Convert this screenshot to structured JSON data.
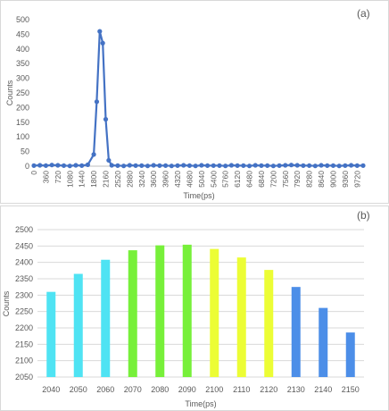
{
  "chart_data": [
    {
      "type": "line",
      "panel_label": "(a)",
      "xlabel": "Time(ps)",
      "ylabel": "Counts",
      "ylim": [
        0,
        500
      ],
      "yticks": [
        0,
        50,
        100,
        150,
        200,
        250,
        300,
        350,
        400,
        450,
        500
      ],
      "xlim": [
        0,
        9900
      ],
      "xticks": [
        "0",
        "360",
        "720",
        "1080",
        "1440",
        "1800",
        "2160",
        "2520",
        "2880",
        "3240",
        "3600",
        "3960",
        "4320",
        "4680",
        "5040",
        "5400",
        "5760",
        "6120",
        "6480",
        "6840",
        "7200",
        "7560",
        "7920",
        "8280",
        "8640",
        "9000",
        "9360",
        "9720"
      ],
      "grid": false,
      "color": "#4472c4",
      "series": [
        {
          "x": [
            0,
            180,
            360,
            540,
            720,
            900,
            1080,
            1260,
            1440,
            1620,
            1800,
            1890,
            1980,
            2070,
            2160,
            2250,
            2340,
            2520,
            2700,
            2880,
            3060,
            3240,
            3420,
            3600,
            3780,
            3960,
            4140,
            4320,
            4500,
            4680,
            4860,
            5040,
            5220,
            5400,
            5580,
            5760,
            5940,
            6120,
            6300,
            6480,
            6660,
            6840,
            7020,
            7200,
            7380,
            7560,
            7740,
            7920,
            8100,
            8280,
            8460,
            8640,
            8820,
            9000,
            9180,
            9360,
            9540,
            9720,
            9900
          ],
          "values": [
            2,
            3,
            2,
            4,
            3,
            2,
            1,
            3,
            2,
            5,
            40,
            220,
            460,
            420,
            160,
            20,
            3,
            2,
            1,
            3,
            2,
            2,
            1,
            3,
            2,
            2,
            1,
            2,
            3,
            2,
            1,
            3,
            2,
            2,
            2,
            1,
            3,
            2,
            2,
            1,
            3,
            2,
            2,
            1,
            2,
            3,
            4,
            3,
            2,
            2,
            1,
            3,
            2,
            2,
            1,
            2,
            3,
            2,
            2
          ]
        }
      ]
    },
    {
      "type": "bar",
      "panel_label": "(b)",
      "xlabel": "Time(ps)",
      "ylabel": "Counts",
      "ylim": [
        2050,
        2500
      ],
      "yticks": [
        2050,
        2100,
        2150,
        2200,
        2250,
        2300,
        2350,
        2400,
        2450,
        2500
      ],
      "grid": true,
      "categories": [
        "2040",
        "2050",
        "2060",
        "2070",
        "2080",
        "2090",
        "2100",
        "2110",
        "2120",
        "2130",
        "2140",
        "2150"
      ],
      "values": [
        2310,
        2365,
        2408,
        2437,
        2452,
        2454,
        2441,
        2415,
        2377,
        2325,
        2261,
        2186
      ],
      "bar_colors": [
        "#4fe3f3",
        "#4fe3f3",
        "#4fe3f3",
        "#77f03a",
        "#77f03a",
        "#77f03a",
        "#ecfd35",
        "#ecfd35",
        "#ecfd35",
        "#4c8ee8",
        "#4c8ee8",
        "#4c8ee8"
      ]
    }
  ]
}
